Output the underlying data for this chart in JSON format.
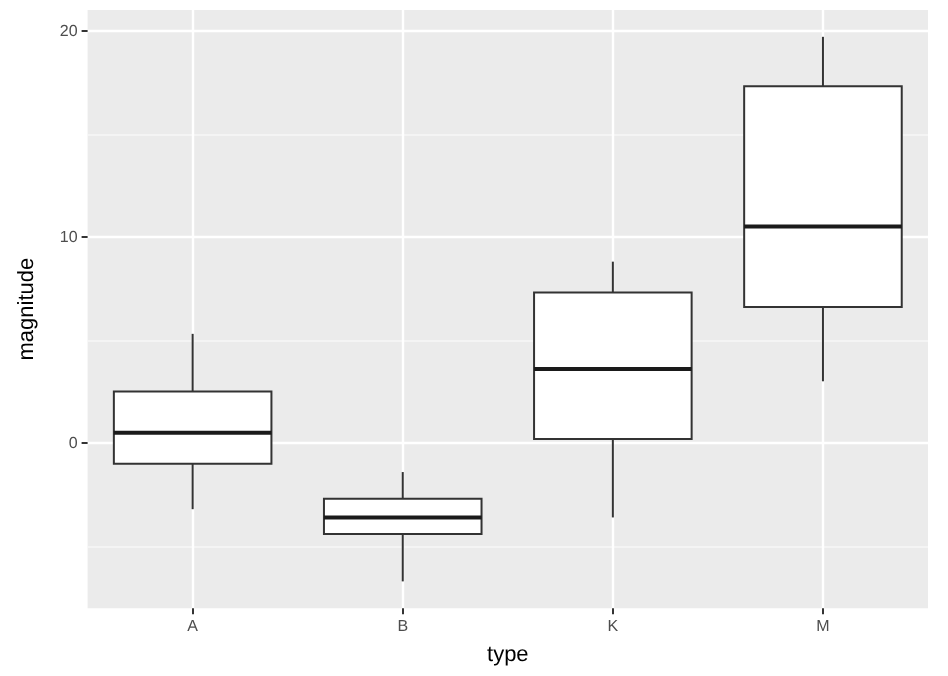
{
  "chart_data": {
    "type": "box",
    "xlabel": "type",
    "ylabel": "magnitude",
    "categories": [
      "A",
      "B",
      "K",
      "M"
    ],
    "boxes": [
      {
        "low": -3.2,
        "q1": -1.0,
        "median": 0.5,
        "q3": 2.5,
        "high": 5.3
      },
      {
        "low": -6.7,
        "q1": -4.4,
        "median": -3.6,
        "q3": -2.7,
        "high": -1.4
      },
      {
        "low": -3.6,
        "q1": 0.2,
        "median": 3.6,
        "q3": 7.3,
        "high": 8.8
      },
      {
        "low": 3.0,
        "q1": 6.6,
        "median": 10.5,
        "q3": 17.3,
        "high": 19.7
      }
    ],
    "color": "#ffffff",
    "ylim": [
      -8,
      21
    ],
    "yticks": [
      {
        "value": -5,
        "label": null
      },
      0,
      {
        "value": 5,
        "label": null
      },
      10,
      {
        "value": 15,
        "label": null
      },
      20
    ],
    "grid": true,
    "legend": false
  }
}
